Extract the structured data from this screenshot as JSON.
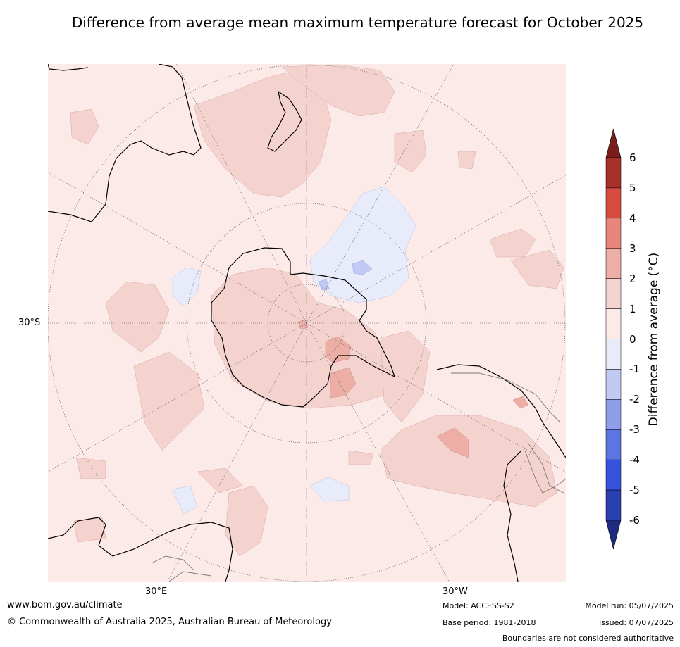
{
  "title": "Difference from average mean maximum temperature forecast for October 2025",
  "map": {
    "projection": "south polar stereographic",
    "lat_labels": [
      "30°S"
    ],
    "lon_labels": [
      "30°E",
      "30°W"
    ]
  },
  "colorbar": {
    "label": "Difference from average (°C)",
    "ticks": [
      "6",
      "5",
      "4",
      "3",
      "2",
      "1",
      "0",
      "-1",
      "-2",
      "-3",
      "-4",
      "-5",
      "-6"
    ],
    "bins": [
      {
        "range": [
          5,
          6
        ],
        "color": "#a8302a"
      },
      {
        "range": [
          4,
          5
        ],
        "color": "#d84c40"
      },
      {
        "range": [
          3,
          4
        ],
        "color": "#e8867c"
      },
      {
        "range": [
          2,
          3
        ],
        "color": "#edaea6"
      },
      {
        "range": [
          1,
          2
        ],
        "color": "#f4d3cf"
      },
      {
        "range": [
          0,
          1
        ],
        "color": "#fbeae8"
      },
      {
        "range": [
          -1,
          0
        ],
        "color": "#e8ebfa"
      },
      {
        "range": [
          -2,
          -1
        ],
        "color": "#c2c9f2"
      },
      {
        "range": [
          -3,
          -2
        ],
        "color": "#8f9eeb"
      },
      {
        "range": [
          -4,
          -3
        ],
        "color": "#5d75e0"
      },
      {
        "range": [
          -5,
          -4
        ],
        "color": "#3553dc"
      },
      {
        "range": [
          -6,
          -5
        ],
        "color": "#2a40b0"
      }
    ],
    "over_color": "#7a1c1a",
    "under_color": "#1f2b80"
  },
  "footer": {
    "url": "www.bom.gov.au/climate",
    "copyright": "© Commonwealth of Australia 2025, Australian Bureau of Meteorology",
    "model": "Model: ACCESS-S2",
    "base_period": "Base period: 1981-2018",
    "model_run": "Model run: 05/07/2025",
    "issued": "Issued: 07/07/2025",
    "disclaimer": "Boundaries are not considered authoritative"
  }
}
